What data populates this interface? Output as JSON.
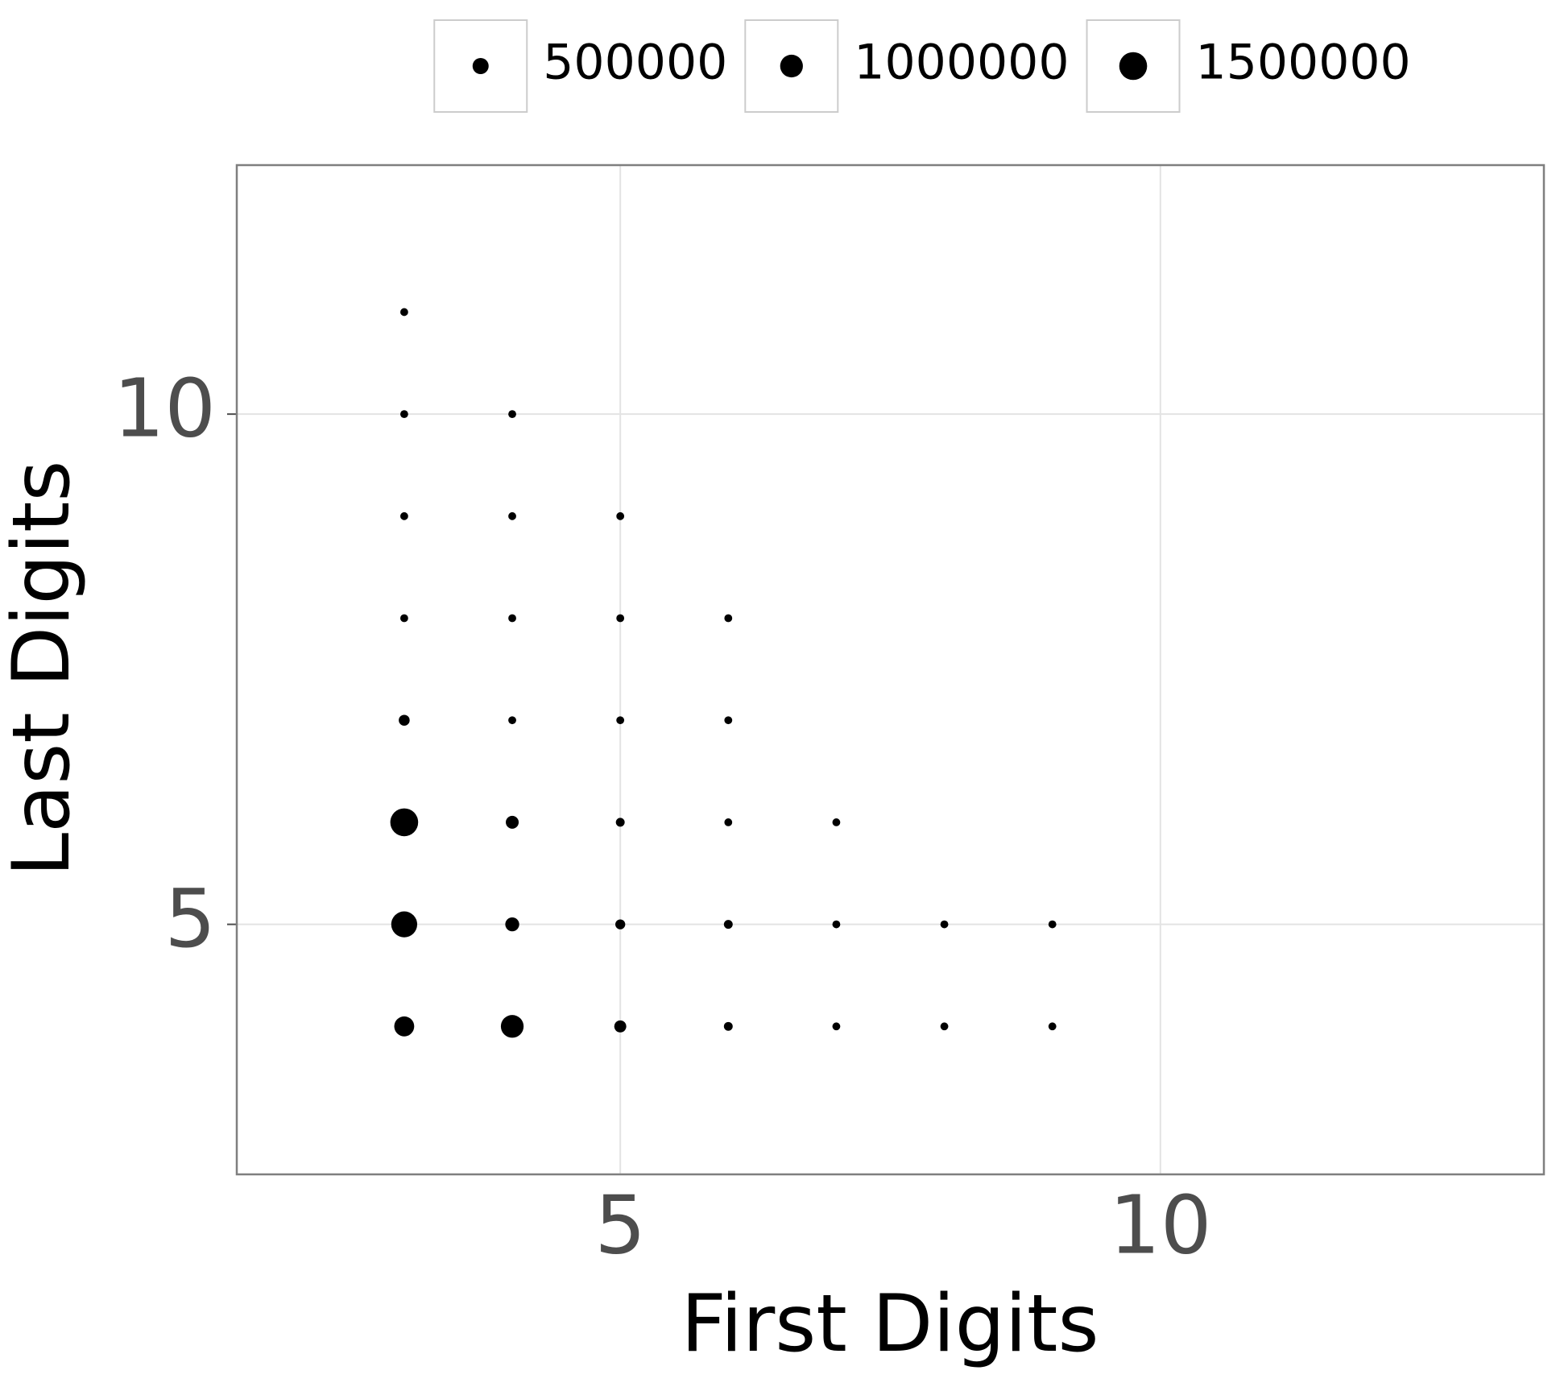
{
  "chart_data": {
    "type": "scatter",
    "x_label": "First Digits",
    "y_label": "Last Digits",
    "x": [
      3,
      3,
      4,
      3,
      4,
      5,
      3,
      4,
      5,
      6,
      3,
      4,
      5,
      6,
      3,
      4,
      5,
      6,
      7,
      3,
      4,
      5,
      6,
      7,
      8,
      9,
      3,
      4,
      5,
      6,
      7,
      8,
      9
    ],
    "y": [
      11,
      10,
      10,
      9,
      9,
      9,
      8,
      8,
      8,
      8,
      7,
      7,
      7,
      7,
      6,
      6,
      6,
      6,
      6,
      5,
      5,
      5,
      5,
      5,
      5,
      5,
      4,
      4,
      4,
      4,
      4,
      4,
      4
    ],
    "sizes": [
      120000,
      120000,
      120000,
      120000,
      120000,
      120000,
      120000,
      120000,
      120000,
      120000,
      230000,
      120000,
      120000,
      120000,
      1500000,
      320000,
      150000,
      120000,
      120000,
      1300000,
      375000,
      190000,
      150000,
      120000,
      120000,
      120000,
      770000,
      1000000,
      280000,
      150000,
      120000,
      120000,
      120000
    ],
    "color": "#000000",
    "xlim": [
      1.45,
      13.55
    ],
    "ylim": [
      2.55,
      12.44
    ],
    "xticks": [
      5,
      10
    ],
    "yticks": [
      5,
      10
    ],
    "grid": true,
    "size_legend": [
      500000,
      1000000,
      1500000
    ],
    "legend_position": "top"
  }
}
